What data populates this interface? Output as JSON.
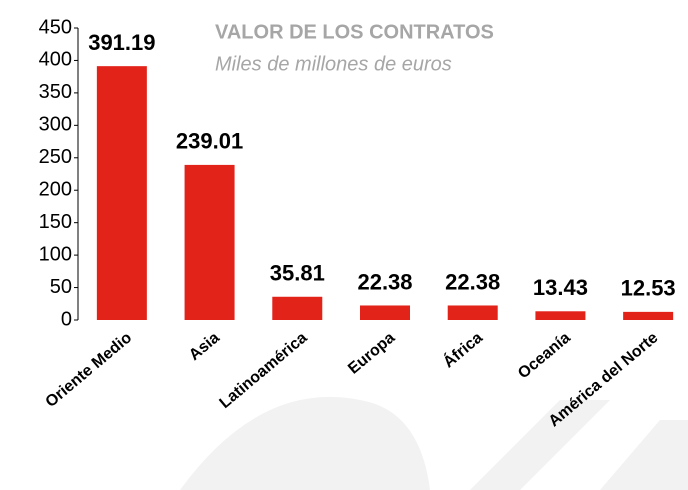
{
  "chart_data": {
    "type": "bar",
    "title": "VALOR DE LOS CONTRATOS",
    "subtitle": "Miles de millones de euros",
    "categories": [
      "Oriente Medio",
      "Asia",
      "Latinoamérica",
      "Europa",
      "África",
      "Oceanía",
      "América del Norte"
    ],
    "values": [
      391.19,
      239.01,
      35.81,
      22.38,
      22.38,
      13.43,
      12.53
    ],
    "color": "#e2231a",
    "ylim": [
      0,
      450
    ],
    "yticks": [
      0,
      50,
      100,
      150,
      200,
      250,
      300,
      350,
      400,
      450
    ],
    "grid": false
  }
}
